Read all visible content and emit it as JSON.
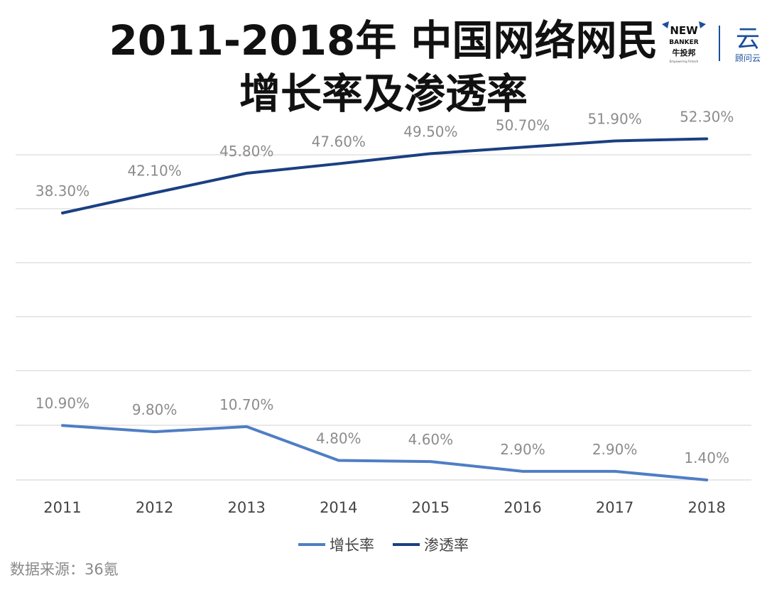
{
  "title": {
    "line1": "2011-2018年 中国网络网民",
    "line2": "增长率及渗透率"
  },
  "logos": {
    "newbanker": {
      "word1": "NEW",
      "word2": "BANKER",
      "cn": "牛投邦",
      "tagline": "Empowering Fintech"
    },
    "yun": {
      "glyph": "云",
      "cn": "顾问云"
    }
  },
  "source": "数据来源：36氪",
  "colors": {
    "growth": "#4f7ec4",
    "penetration": "#1b3f82",
    "label": "#8c8c8c",
    "grid": "#d9d9d9"
  },
  "chart_data": {
    "type": "line",
    "categories": [
      "2011",
      "2012",
      "2013",
      "2014",
      "2015",
      "2016",
      "2017",
      "2018"
    ],
    "series": [
      {
        "name": "增长率",
        "values": [
          10.9,
          9.8,
          10.7,
          4.8,
          4.6,
          2.9,
          2.9,
          1.4
        ],
        "labels": [
          "10.90%",
          "9.80%",
          "10.70%",
          "4.80%",
          "4.60%",
          "2.90%",
          "2.90%",
          "1.40%"
        ]
      },
      {
        "name": "渗透率",
        "values": [
          38.3,
          42.1,
          45.8,
          47.6,
          49.5,
          50.7,
          51.9,
          52.3
        ],
        "labels": [
          "38.30%",
          "42.10%",
          "45.80%",
          "47.60%",
          "49.50%",
          "50.70%",
          "51.90%",
          "52.30%"
        ]
      }
    ],
    "legend_position": "bottom",
    "grid": true,
    "y_axis_visible": false
  }
}
